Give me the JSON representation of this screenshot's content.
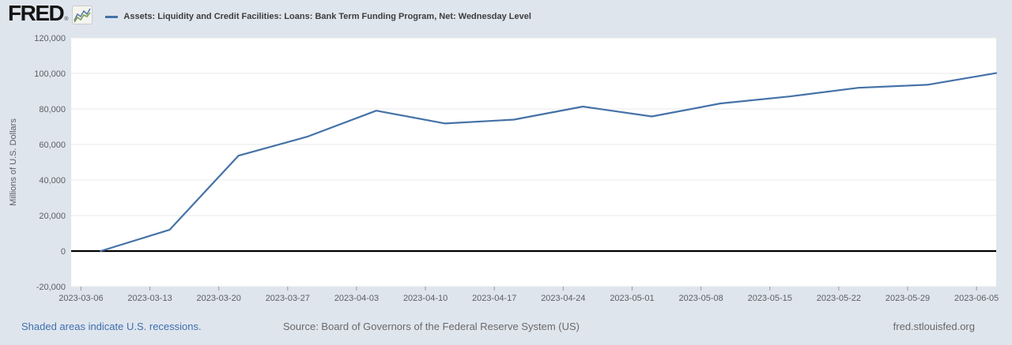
{
  "header": {
    "logo_text": "FRED",
    "logo_registered": "®",
    "series_title": "Assets: Liquidity and Credit Facilities: Loans: Bank Term Funding Program, Net: Wednesday Level"
  },
  "footer": {
    "recession_note": "Shaded areas indicate U.S. recessions.",
    "source": "Source: Board of Governors of the Federal Reserve System (US)",
    "site": "fred.stlouisfed.org"
  },
  "colors": {
    "background": "#dfe5ed",
    "plot_background": "#ffffff",
    "grid": "#e9e9e9",
    "zero_line": "#000000",
    "line": "#4572a7",
    "axis_text": "#5b6066",
    "tick_mark": "#999999"
  },
  "chart_data": {
    "type": "line",
    "title": "Assets: Liquidity and Credit Facilities: Loans: Bank Term Funding Program, Net: Wednesday Level",
    "xlabel": "",
    "ylabel": "Millions of U.S. Dollars",
    "ylim": [
      -20000,
      120000
    ],
    "x_range": [
      "2023-03-05",
      "2023-06-07"
    ],
    "grid": "horizontal",
    "zero_line": true,
    "legend_position": "top",
    "y_tick_values": [
      120000,
      100000,
      80000,
      60000,
      40000,
      20000,
      0,
      -20000
    ],
    "y_tick_labels": [
      "120,000",
      "100,000",
      "80,000",
      "60,000",
      "40,000",
      "20,000",
      "0",
      "-20,000"
    ],
    "x_tick_dates": [
      "2023-03-06",
      "2023-03-13",
      "2023-03-20",
      "2023-03-27",
      "2023-04-03",
      "2023-04-10",
      "2023-04-17",
      "2023-04-24",
      "2023-05-01",
      "2023-05-08",
      "2023-05-15",
      "2023-05-22",
      "2023-05-29",
      "2023-06-05"
    ],
    "series": [
      {
        "name": "Assets: Liquidity and Credit Facilities: Loans: Bank Term Funding Program, Net: Wednesday Level",
        "color": "#4572a7",
        "dates": [
          "2023-03-08",
          "2023-03-15",
          "2023-03-22",
          "2023-03-29",
          "2023-04-05",
          "2023-04-12",
          "2023-04-19",
          "2023-04-26",
          "2023-05-03",
          "2023-05-10",
          "2023-05-17",
          "2023-05-24",
          "2023-05-31",
          "2023-06-07"
        ],
        "values": [
          0,
          11943,
          53669,
          64403,
          79021,
          71837,
          73982,
          81327,
          75778,
          83101,
          87006,
          91907,
          93615,
          100161
        ]
      }
    ]
  }
}
